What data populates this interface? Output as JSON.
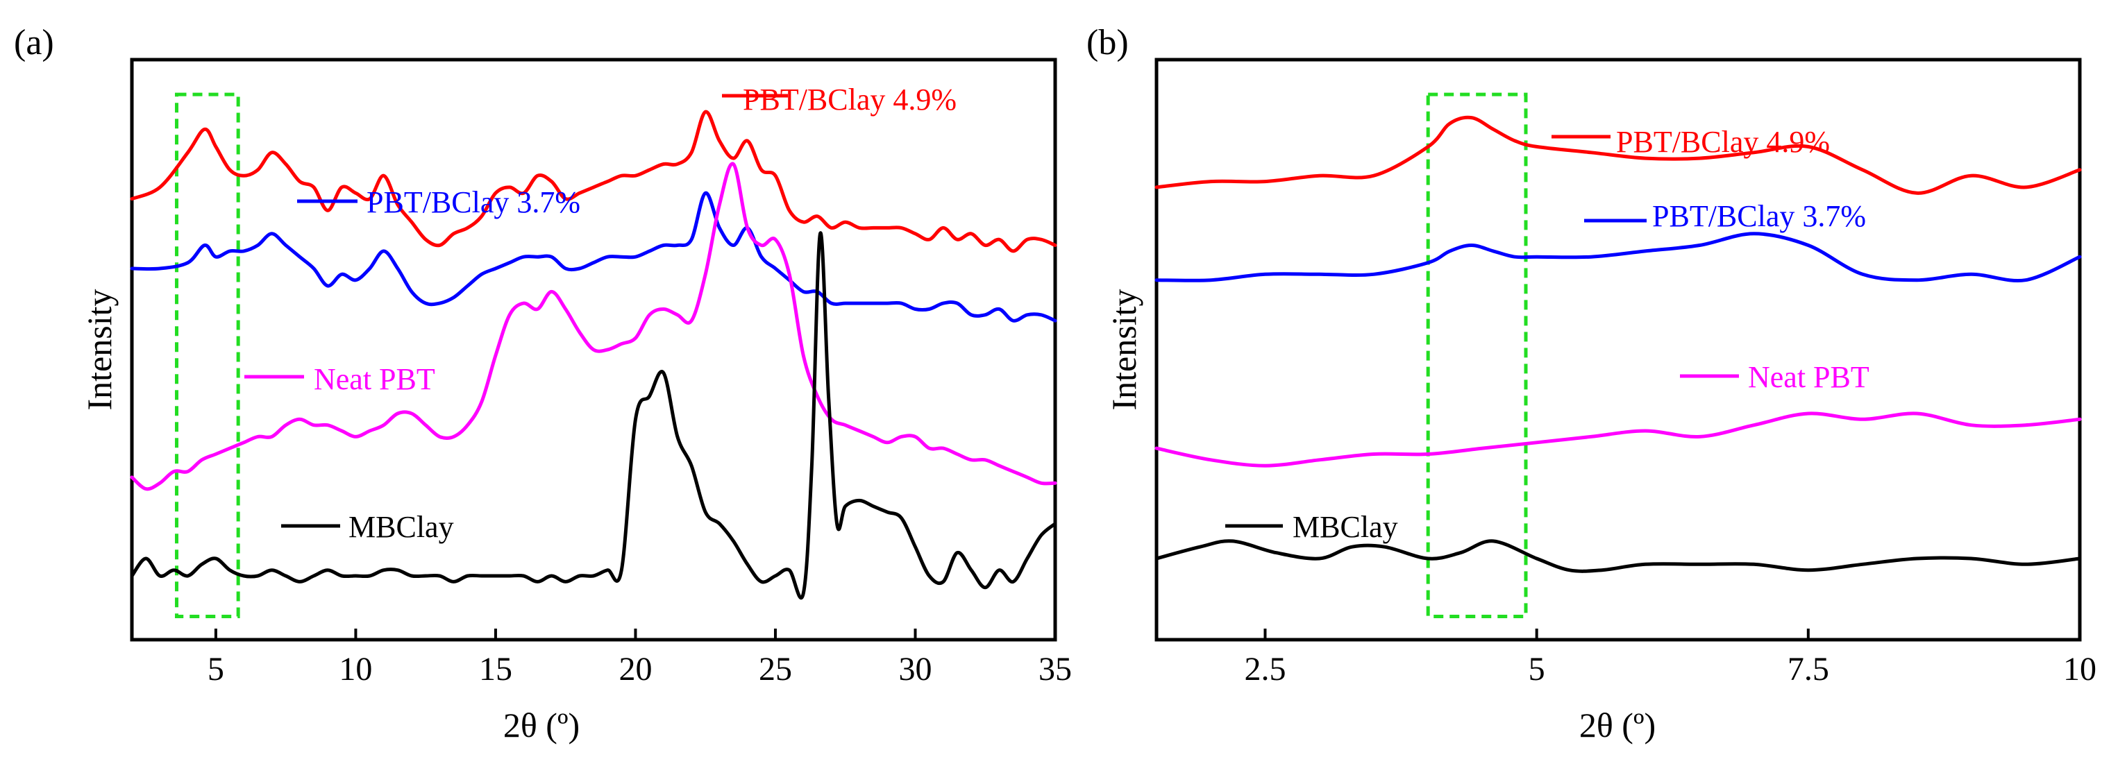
{
  "chart_data": [
    {
      "panel_label": "(a)",
      "type": "line",
      "xlabel": "2θ (º)",
      "ylabel": "Intensity",
      "xlim": [
        2,
        35
      ],
      "xticks": [
        5,
        10,
        15,
        20,
        25,
        30,
        35
      ],
      "xtick_labels": [
        "5",
        "10",
        "15",
        "20",
        "25",
        "30",
        "35"
      ],
      "ylim": [
        0,
        100
      ],
      "yticks": "none",
      "highlight_box": {
        "x": [
          3.6,
          5.8
        ],
        "y": [
          4,
          94
        ]
      },
      "series": [
        {
          "name": "PBT/BClay 4.9%",
          "color": "#ff0000",
          "x": [
            2,
            3,
            4,
            4.6,
            5,
            5.5,
            6,
            6.5,
            7,
            7.5,
            8,
            8.5,
            9,
            9.5,
            10,
            10.5,
            11,
            11.5,
            12,
            12.5,
            13,
            13.5,
            14,
            14.5,
            15,
            15.5,
            16,
            16.5,
            17,
            17.5,
            18,
            18.5,
            19,
            19.5,
            20,
            20.5,
            21,
            21.5,
            22,
            22.5,
            23,
            23.5,
            24,
            24.5,
            25,
            25.5,
            26,
            26.5,
            27,
            27.5,
            28,
            28.5,
            29,
            29.5,
            30,
            30.5,
            31,
            31.5,
            32,
            32.5,
            33,
            33.5,
            34,
            34.5,
            35
          ],
          "y": [
            76,
            78,
            84,
            88,
            85,
            81,
            80,
            81,
            84,
            82,
            79,
            78,
            74,
            78,
            77,
            76,
            80,
            75,
            72,
            69,
            68,
            70,
            71,
            73,
            77,
            78,
            77,
            80,
            79,
            76,
            77,
            78,
            79,
            80,
            80,
            81,
            82,
            82,
            84,
            91,
            86,
            83,
            86,
            81,
            80,
            74,
            72,
            73,
            71,
            72,
            71,
            71,
            71,
            71,
            70,
            69,
            71,
            69,
            70,
            68,
            69,
            67,
            69,
            69,
            68
          ]
        },
        {
          "name": "PBT/BClay 3.7%",
          "color": "#0000ff",
          "x": [
            2,
            3,
            4,
            4.6,
            5,
            5.5,
            6,
            6.5,
            7,
            7.5,
            8,
            8.5,
            9,
            9.5,
            10,
            10.5,
            11,
            11.5,
            12,
            12.5,
            13,
            13.5,
            14,
            14.5,
            15,
            15.5,
            16,
            16.5,
            17,
            17.5,
            18,
            18.5,
            19,
            19.5,
            20,
            20.5,
            21,
            21.5,
            22,
            22.5,
            23,
            23.5,
            24,
            24.5,
            25,
            25.5,
            26,
            26.5,
            27,
            27.5,
            28,
            28.5,
            29,
            29.5,
            30,
            30.5,
            31,
            31.5,
            32,
            32.5,
            33,
            33.5,
            34,
            34.5,
            35
          ],
          "y": [
            64,
            64,
            65,
            68,
            66,
            67,
            67,
            68,
            70,
            68,
            66,
            64,
            61,
            63,
            62,
            64,
            67,
            64,
            60,
            58,
            58,
            59,
            61,
            63,
            64,
            65,
            66,
            66,
            66,
            64,
            64,
            65,
            66,
            66,
            66,
            67,
            68,
            68,
            69,
            77,
            71,
            68,
            71,
            66,
            64,
            62,
            60,
            60,
            58,
            58,
            58,
            58,
            58,
            58,
            57,
            57,
            58,
            58,
            56,
            56,
            57,
            55,
            56,
            56,
            55
          ]
        },
        {
          "name": "Neat PBT",
          "color": "#ff00ff",
          "x": [
            2,
            2.5,
            3,
            3.5,
            4,
            4.5,
            5,
            5.5,
            6,
            6.5,
            7,
            7.5,
            8,
            8.5,
            9,
            9.5,
            10,
            10.5,
            11,
            11.5,
            12,
            12.5,
            13,
            13.5,
            14,
            14.5,
            15,
            15.5,
            16,
            16.5,
            17,
            17.5,
            18,
            18.5,
            19,
            19.5,
            20,
            20.5,
            21,
            21.5,
            22,
            22.5,
            23,
            23.5,
            24,
            24.5,
            25,
            25.5,
            26,
            26.5,
            27,
            27.5,
            28,
            28.5,
            29,
            29.5,
            30,
            30.5,
            31,
            31.5,
            32,
            32.5,
            33,
            33.5,
            34,
            34.5,
            35
          ],
          "y": [
            28,
            26,
            27,
            29,
            29,
            31,
            32,
            33,
            34,
            35,
            35,
            37,
            38,
            37,
            37,
            36,
            35,
            36,
            37,
            39,
            39,
            37,
            35,
            35,
            37,
            41,
            49,
            56,
            58,
            57,
            60,
            57,
            53,
            50,
            50,
            51,
            52,
            56,
            57,
            56,
            55,
            63,
            75,
            82,
            71,
            68,
            69,
            63,
            49,
            42,
            38,
            37,
            36,
            35,
            34,
            35,
            35,
            33,
            33,
            32,
            31,
            31,
            30,
            29,
            28,
            27,
            27
          ]
        },
        {
          "name": "MBClay",
          "color": "#000000",
          "x": [
            2,
            2.5,
            3,
            3.5,
            4,
            4.5,
            5,
            5.5,
            6,
            6.5,
            7,
            7.5,
            8,
            8.5,
            9,
            9.5,
            10,
            10.5,
            11,
            11.5,
            12,
            12.5,
            13,
            13.5,
            14,
            14.5,
            15,
            15.5,
            16,
            16.5,
            17,
            17.5,
            18,
            18.5,
            19,
            19.5,
            20,
            20.5,
            21,
            21.5,
            22,
            22.5,
            23,
            23.5,
            24,
            24.5,
            25,
            25.5,
            26,
            26.3,
            26.6,
            26.9,
            27.2,
            27.5,
            28,
            28.5,
            29,
            29.5,
            30,
            30.5,
            31,
            31.5,
            32,
            32.5,
            33,
            33.5,
            34,
            34.5,
            35
          ],
          "y": [
            11,
            14,
            11,
            12,
            11,
            13,
            14,
            12,
            11,
            11,
            12,
            11,
            10,
            11,
            12,
            11,
            11,
            11,
            12,
            12,
            11,
            11,
            11,
            10,
            11,
            11,
            11,
            11,
            11,
            10,
            11,
            10,
            11,
            11,
            12,
            12,
            38,
            42,
            46,
            35,
            30,
            22,
            20,
            17,
            13,
            10,
            11,
            12,
            8,
            30,
            70,
            42,
            20,
            23,
            24,
            23,
            22,
            21,
            16,
            11,
            10,
            15,
            12,
            9,
            12,
            10,
            14,
            18,
            20
          ]
        }
      ],
      "annotations": [
        {
          "text": "PBT/BClay 4.9%",
          "color": "#ff0000"
        },
        {
          "text": "PBT/BClay 3.7%",
          "color": "#0000ff"
        },
        {
          "text": "Neat PBT",
          "color": "#ff00ff"
        },
        {
          "text": "MBClay",
          "color": "#000000"
        }
      ]
    },
    {
      "panel_label": "(b)",
      "type": "line",
      "xlabel": "2θ (º)",
      "ylabel": "Intensity",
      "xlim": [
        1.5,
        10
      ],
      "xticks": [
        2.5,
        5,
        7.5,
        10
      ],
      "xtick_labels": [
        "2.5",
        "5",
        "7.5",
        "10"
      ],
      "ylim": [
        0,
        100
      ],
      "yticks": "none",
      "highlight_box": {
        "x": [
          4.0,
          4.9
        ],
        "y": [
          4,
          94
        ]
      },
      "series": [
        {
          "name": "PBT/BClay 4.9%",
          "color": "#ff0000",
          "x": [
            1.5,
            2,
            2.5,
            3,
            3.5,
            4,
            4.2,
            4.4,
            4.6,
            4.8,
            5,
            5.5,
            6,
            6.5,
            7,
            7.5,
            8,
            8.5,
            9,
            9.5,
            10
          ],
          "y": [
            78,
            79,
            79,
            80,
            80,
            85,
            89,
            90,
            88,
            86,
            85,
            84,
            83,
            83,
            84,
            85,
            81,
            77,
            80,
            78,
            81
          ],
          "smooth": true
        },
        {
          "name": "PBT/BClay 3.7%",
          "color": "#0000ff",
          "x": [
            1.5,
            2,
            2.5,
            3,
            3.5,
            4,
            4.2,
            4.4,
            4.6,
            4.8,
            5,
            5.5,
            6,
            6.5,
            7,
            7.5,
            8,
            8.5,
            9,
            9.5,
            10
          ],
          "y": [
            62,
            62,
            63,
            63,
            63,
            65,
            67,
            68,
            67,
            66,
            66,
            66,
            67,
            68,
            70,
            68,
            63,
            62,
            63,
            62,
            66
          ],
          "smooth": true
        },
        {
          "name": "Neat PBT",
          "color": "#ff00ff",
          "x": [
            1.5,
            2,
            2.5,
            3,
            3.5,
            4,
            4.5,
            5,
            5.5,
            6,
            6.5,
            7,
            7.5,
            8,
            8.5,
            9,
            9.5,
            10
          ],
          "y": [
            33,
            31,
            30,
            31,
            32,
            32,
            33,
            34,
            35,
            36,
            35,
            37,
            39,
            38,
            39,
            37,
            37,
            38
          ],
          "smooth": true
        },
        {
          "name": "MBClay",
          "color": "#000000",
          "x": [
            1.5,
            1.9,
            2.2,
            2.6,
            3,
            3.3,
            3.6,
            4,
            4.3,
            4.6,
            5,
            5.3,
            5.6,
            6,
            6.5,
            7,
            7.5,
            8,
            8.5,
            9,
            9.5,
            10
          ],
          "y": [
            14,
            16,
            17,
            15,
            14,
            16,
            16,
            14,
            15,
            17,
            14,
            12,
            12,
            13,
            13,
            13,
            12,
            13,
            14,
            14,
            13,
            14
          ],
          "smooth": true
        }
      ],
      "annotations": [
        {
          "text": "PBT/BClay 4.9%",
          "color": "#ff0000"
        },
        {
          "text": "PBT/BClay 3.7%",
          "color": "#0000ff"
        },
        {
          "text": "Neat PBT",
          "color": "#ff00ff"
        },
        {
          "text": "MBClay",
          "color": "#000000"
        }
      ]
    }
  ]
}
